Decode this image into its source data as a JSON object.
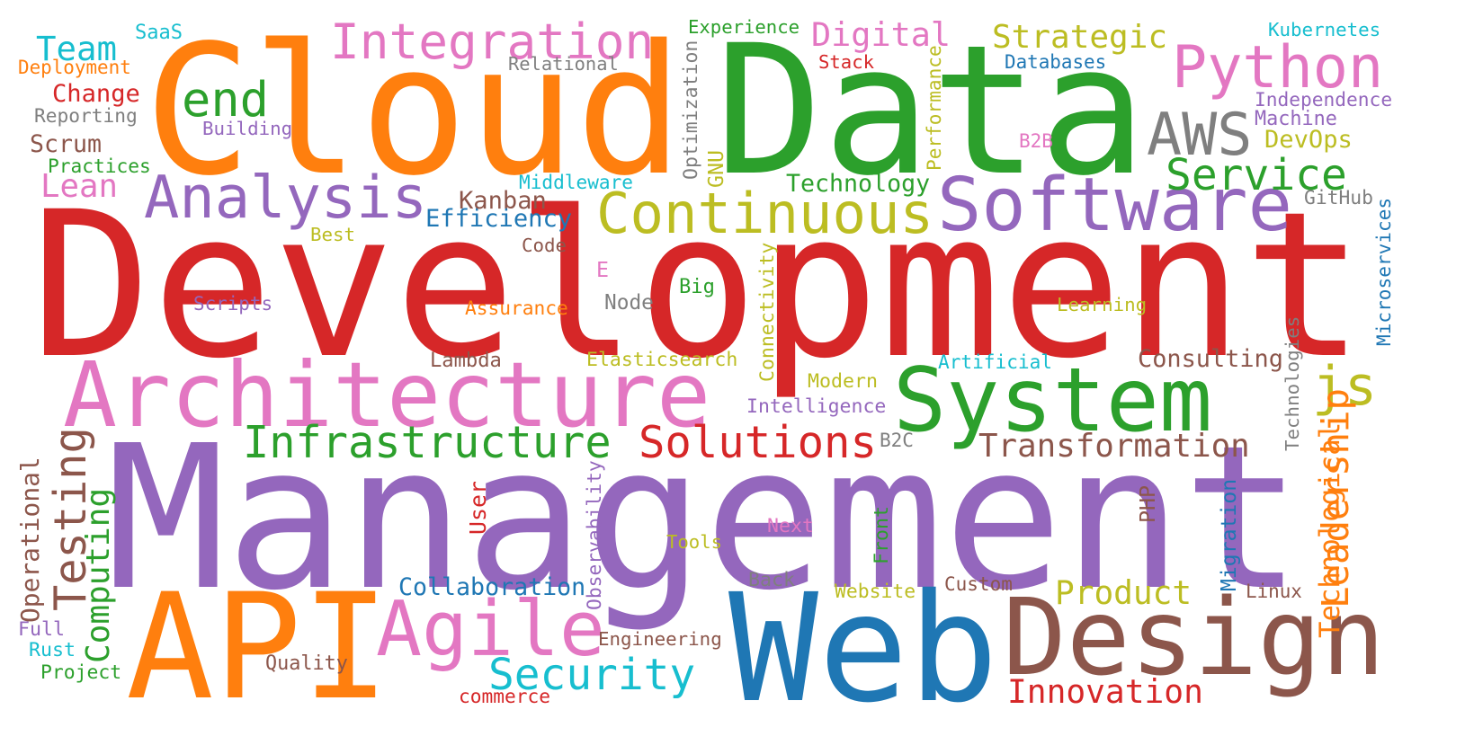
{
  "palette": {
    "blue": "#1f77b4",
    "orange": "#ff7f0e",
    "green": "#2ca02c",
    "red": "#d62728",
    "purple": "#9467bd",
    "brown": "#8c564b",
    "pink": "#e377c2",
    "gray": "#7f7f7f",
    "olive": "#bcbd22",
    "cyan": "#17becf"
  },
  "words": [
    {
      "text": "Development",
      "color": "red"
    },
    {
      "text": "Management",
      "color": "purple"
    },
    {
      "text": "Data",
      "color": "green"
    },
    {
      "text": "Cloud",
      "color": "orange"
    },
    {
      "text": "Web",
      "color": "blue"
    },
    {
      "text": "API",
      "color": "orange"
    },
    {
      "text": "Design",
      "color": "brown"
    },
    {
      "text": "Architecture",
      "color": "pink"
    },
    {
      "text": "System",
      "color": "green"
    },
    {
      "text": "Software",
      "color": "purple"
    },
    {
      "text": "Continuous",
      "color": "olive"
    },
    {
      "text": "Agile",
      "color": "pink"
    },
    {
      "text": "Analysis",
      "color": "purple"
    },
    {
      "text": "Python",
      "color": "pink"
    },
    {
      "text": "Integration",
      "color": "pink"
    },
    {
      "text": "AWS",
      "color": "gray"
    },
    {
      "text": "Infrastructure",
      "color": "green"
    },
    {
      "text": "Solutions",
      "color": "red"
    },
    {
      "text": "Security",
      "color": "cyan"
    },
    {
      "text": "Testing",
      "color": "brown"
    },
    {
      "text": "end",
      "color": "green"
    },
    {
      "text": "js",
      "color": "olive"
    },
    {
      "text": "Service",
      "color": "green"
    },
    {
      "text": "Transformation",
      "color": "brown"
    },
    {
      "text": "Innovation",
      "color": "red"
    },
    {
      "text": "Product",
      "color": "olive"
    },
    {
      "text": "Strategic",
      "color": "olive"
    },
    {
      "text": "Digital",
      "color": "pink"
    },
    {
      "text": "Team",
      "color": "cyan"
    },
    {
      "text": "Leadership",
      "color": "orange"
    },
    {
      "text": "Computing",
      "color": "green"
    },
    {
      "text": "Technological",
      "color": "orange"
    },
    {
      "text": "Operational",
      "color": "brown"
    },
    {
      "text": "Collaboration",
      "color": "blue"
    },
    {
      "text": "Lean",
      "color": "pink"
    },
    {
      "text": "Consulting",
      "color": "brown"
    },
    {
      "text": "Efficiency",
      "color": "blue"
    },
    {
      "text": "Change",
      "color": "red"
    },
    {
      "text": "Scrum",
      "color": "brown"
    },
    {
      "text": "Kanban",
      "color": "brown"
    },
    {
      "text": "Technology",
      "color": "green"
    },
    {
      "text": "DevOps",
      "color": "olive"
    },
    {
      "text": "Microservices",
      "color": "blue"
    },
    {
      "text": "Technologies",
      "color": "gray"
    },
    {
      "text": "Migration",
      "color": "blue"
    },
    {
      "text": "Connectivity",
      "color": "olive"
    },
    {
      "text": "Observability",
      "color": "purple"
    },
    {
      "text": "Optimization",
      "color": "gray"
    },
    {
      "text": "Performance",
      "color": "olive"
    },
    {
      "text": "Experience",
      "color": "green"
    },
    {
      "text": "Kubernetes",
      "color": "cyan"
    },
    {
      "text": "Deployment",
      "color": "orange"
    },
    {
      "text": "Reporting",
      "color": "gray"
    },
    {
      "text": "Relational",
      "color": "gray"
    },
    {
      "text": "Databases",
      "color": "blue"
    },
    {
      "text": "Independence",
      "color": "purple"
    },
    {
      "text": "Machine",
      "color": "purple"
    },
    {
      "text": "Building",
      "color": "purple"
    },
    {
      "text": "Practices",
      "color": "green"
    },
    {
      "text": "Middleware",
      "color": "cyan"
    },
    {
      "text": "GitHub",
      "color": "gray"
    },
    {
      "text": "Best",
      "color": "olive"
    },
    {
      "text": "Code",
      "color": "brown"
    },
    {
      "text": "Big",
      "color": "green"
    },
    {
      "text": "Learning",
      "color": "olive"
    },
    {
      "text": "Scripts",
      "color": "purple"
    },
    {
      "text": "Assurance",
      "color": "orange"
    },
    {
      "text": "Node",
      "color": "gray"
    },
    {
      "text": "Lambda",
      "color": "brown"
    },
    {
      "text": "Elasticsearch",
      "color": "olive"
    },
    {
      "text": "Artificial",
      "color": "cyan"
    },
    {
      "text": "Intelligence",
      "color": "purple"
    },
    {
      "text": "Modern",
      "color": "olive"
    },
    {
      "text": "B2C",
      "color": "gray"
    },
    {
      "text": "B2B",
      "color": "pink"
    },
    {
      "text": "User",
      "color": "red"
    },
    {
      "text": "Next",
      "color": "pink"
    },
    {
      "text": "Tools",
      "color": "olive"
    },
    {
      "text": "Front",
      "color": "green"
    },
    {
      "text": "PHP",
      "color": "brown"
    },
    {
      "text": "Back",
      "color": "gray"
    },
    {
      "text": "Website",
      "color": "olive"
    },
    {
      "text": "Custom",
      "color": "brown"
    },
    {
      "text": "Linux",
      "color": "brown"
    },
    {
      "text": "Engineering",
      "color": "brown"
    },
    {
      "text": "Quality",
      "color": "brown"
    },
    {
      "text": "Full",
      "color": "purple"
    },
    {
      "text": "Rust",
      "color": "cyan"
    },
    {
      "text": "Project",
      "color": "green"
    },
    {
      "text": "commerce",
      "color": "red"
    },
    {
      "text": "SaaS",
      "color": "cyan"
    },
    {
      "text": "Stack",
      "color": "red"
    },
    {
      "text": "GNU",
      "color": "olive"
    },
    {
      "text": "E",
      "color": "pink"
    }
  ]
}
